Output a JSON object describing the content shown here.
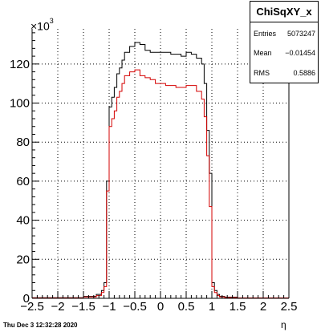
{
  "chart_data": {
    "type": "histogram",
    "title": "ChiSqXY_x",
    "xlabel": "η",
    "ylabel": "",
    "y_exponent_label": "×10",
    "y_exponent_power": "3",
    "xlim": [
      -2.5,
      2.5
    ],
    "ylim": [
      0,
      138
    ],
    "y_units": "×10^3 entries",
    "xticks": [
      "−2.5",
      "−2",
      "−1.5",
      "−1",
      "−0.5",
      "0",
      "0.5",
      "1",
      "1.5",
      "2",
      "2.5"
    ],
    "xtick_values": [
      -2.5,
      -2,
      -1.5,
      -1,
      -0.5,
      0,
      0.5,
      1,
      1.5,
      2,
      2.5
    ],
    "yticks": [
      "0",
      "20",
      "40",
      "60",
      "80",
      "100",
      "120"
    ],
    "ytick_values": [
      0,
      20,
      40,
      60,
      80,
      100,
      120
    ],
    "grid": true,
    "bin_edges": [
      -2.5,
      -1.5,
      -1.25,
      -1.15,
      -1.1,
      -1.05,
      -1.0,
      -0.95,
      -0.9,
      -0.85,
      -0.8,
      -0.75,
      -0.7,
      -0.6,
      -0.5,
      -0.4,
      -0.3,
      -0.2,
      -0.1,
      0.0,
      0.1,
      0.2,
      0.3,
      0.4,
      0.5,
      0.6,
      0.7,
      0.8,
      0.85,
      0.9,
      0.95,
      1.0,
      1.05,
      1.1,
      1.15,
      1.25,
      1.5,
      2.5
    ],
    "series": [
      {
        "name": "",
        "color": "#000000",
        "values": [
          0.3,
          1,
          2,
          4,
          8,
          60,
          98,
          103,
          108,
          115,
          118,
          122,
          126,
          129,
          131,
          130,
          127,
          126,
          126,
          126,
          126,
          125,
          125,
          124,
          126,
          125,
          123,
          120,
          110,
          86,
          64,
          8,
          4,
          2,
          1,
          0.6,
          0.2
        ]
      },
      {
        "name": "",
        "color": "#d40000",
        "values": [
          0.2,
          0.7,
          1.4,
          3,
          6,
          55,
          88,
          92,
          96,
          103,
          106,
          110,
          114,
          116,
          117,
          114,
          113,
          112,
          110,
          110,
          109,
          109,
          108,
          108,
          109,
          109,
          106,
          102,
          93,
          73,
          47,
          6,
          3,
          1.4,
          0.7,
          0.4,
          0.2
        ]
      }
    ]
  },
  "stats": {
    "title": "ChiSqXY_x",
    "rows": [
      {
        "label": "Entries",
        "value": "5073247"
      },
      {
        "label": "Mean",
        "value": "−0.01454"
      },
      {
        "label": "RMS",
        "value": "0.5886"
      }
    ]
  },
  "footer": {
    "timestamp": "Thu Dec  3 12:32:28 2020"
  }
}
